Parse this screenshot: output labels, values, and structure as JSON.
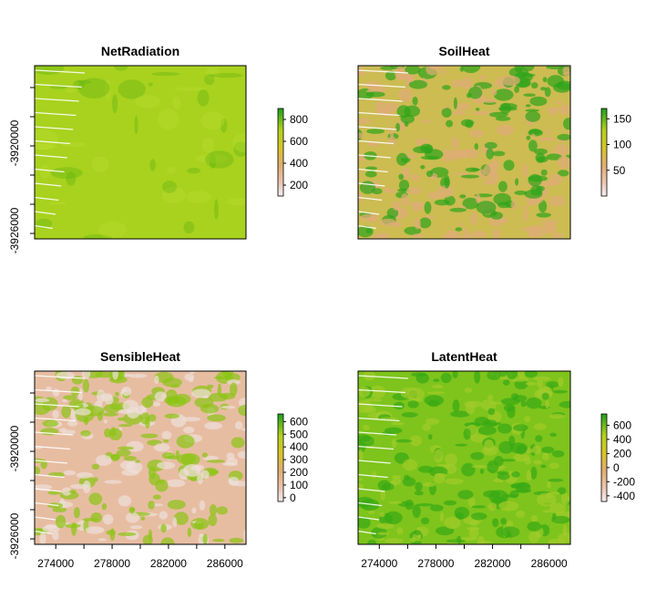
{
  "chart_data": [
    {
      "type": "heatmap",
      "title": "NetRadiation",
      "xlim": [
        272500,
        287500
      ],
      "ylim": [
        -3927000,
        -3915500
      ],
      "x_ticks": [],
      "y_ticks": [
        "-3920000",
        "-3926000"
      ],
      "legend": {
        "min": 100,
        "max": 900,
        "ticks": [
          "200",
          "400",
          "600",
          "800"
        ],
        "tick_values": [
          200,
          400,
          600,
          800
        ]
      },
      "colors": {
        "base": "#a8d21e",
        "light": "#bde032",
        "dark": "#5cb20e"
      }
    },
    {
      "type": "heatmap",
      "title": "SoilHeat",
      "xlim": [
        272500,
        287500
      ],
      "ylim": [
        -3927000,
        -3915500
      ],
      "x_ticks": [],
      "y_ticks": [],
      "legend": {
        "min": 0,
        "max": 170,
        "ticks": [
          "50",
          "100",
          "150"
        ],
        "tick_values": [
          50,
          100,
          150
        ]
      },
      "colors": {
        "base": "#ccbc52",
        "light": "#e0ac78",
        "dark": "#2ea41a"
      }
    },
    {
      "type": "heatmap",
      "title": "SensibleHeat",
      "xlim": [
        272500,
        287500
      ],
      "ylim": [
        -3927000,
        -3915500
      ],
      "x_ticks": [
        "274000",
        "278000",
        "282000",
        "286000"
      ],
      "x_tick_values": [
        274000,
        278000,
        282000,
        286000
      ],
      "y_ticks": [
        "-3920000",
        "-3926000"
      ],
      "legend": {
        "min": -30,
        "max": 660,
        "ticks": [
          "0",
          "100",
          "200",
          "300",
          "400",
          "500",
          "600"
        ],
        "tick_values": [
          0,
          100,
          200,
          300,
          400,
          500,
          600
        ]
      },
      "colors": {
        "base": "#e7bda2",
        "light": "#eee0da",
        "dark": "#8cc414"
      }
    },
    {
      "type": "heatmap",
      "title": "LatentHeat",
      "xlim": [
        272500,
        287500
      ],
      "ylim": [
        -3927000,
        -3915500
      ],
      "x_ticks": [
        "274000",
        "278000",
        "282000",
        "286000"
      ],
      "x_tick_values": [
        274000,
        278000,
        282000,
        286000
      ],
      "y_ticks": [],
      "legend": {
        "min": -480,
        "max": 760,
        "ticks": [
          "-400",
          "-200",
          "0",
          "200",
          "400",
          "600"
        ],
        "tick_values": [
          -400,
          -200,
          0,
          200,
          400,
          600
        ]
      },
      "colors": {
        "base": "#7ec41c",
        "light": "#a2cc2a",
        "dark": "#38aa14"
      }
    }
  ]
}
